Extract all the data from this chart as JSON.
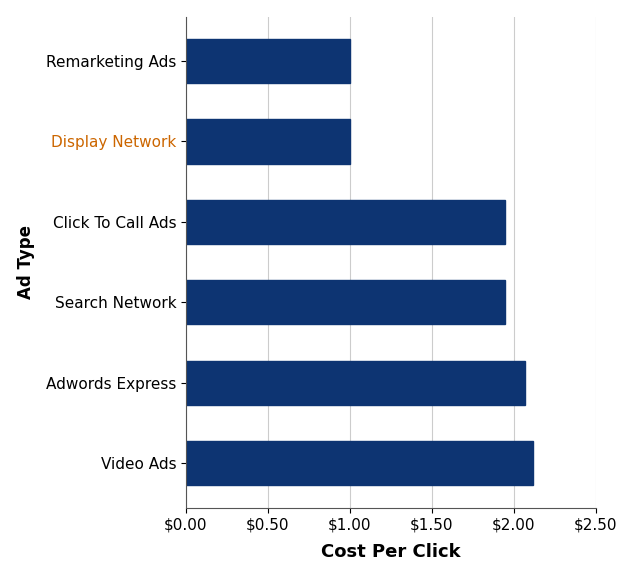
{
  "categories": [
    "Video Ads",
    "Adwords Express",
    "Search Network",
    "Click To Call Ads",
    "Display Network",
    "Remarketing Ads"
  ],
  "values": [
    2.12,
    2.07,
    1.95,
    1.95,
    1.0,
    1.0
  ],
  "bar_color": "#0d3472",
  "xlabel": "Cost Per Click",
  "ylabel": "Ad Type",
  "xlim": [
    0,
    2.5
  ],
  "xticks": [
    0.0,
    0.5,
    1.0,
    1.5,
    2.0,
    2.5
  ],
  "background_color": "#ffffff",
  "bar_height": 0.55,
  "xlabel_fontsize": 13,
  "ylabel_fontsize": 12,
  "tick_fontsize": 11,
  "display_network_color": "#cc6600"
}
